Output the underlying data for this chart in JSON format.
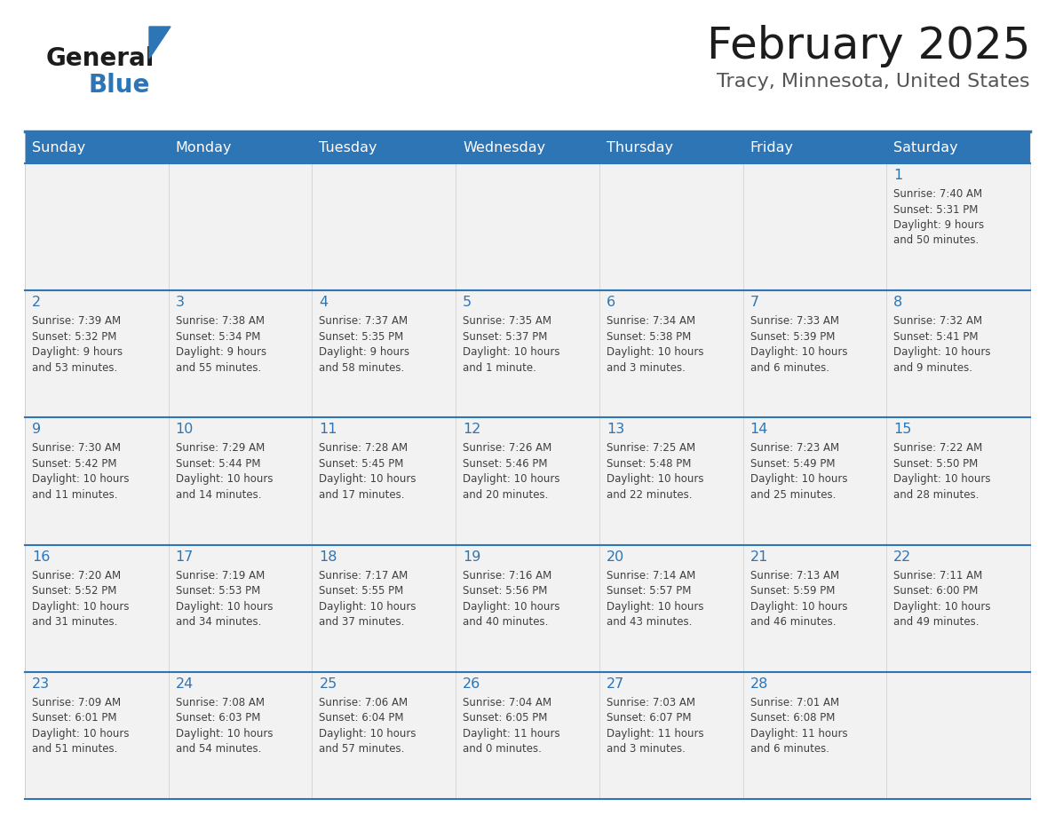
{
  "title": "February 2025",
  "subtitle": "Tracy, Minnesota, United States",
  "header_bg_color": "#2E75B6",
  "header_text_color": "#FFFFFF",
  "cell_bg_color": "#F2F2F2",
  "day_number_color": "#2E75B6",
  "text_color": "#404040",
  "border_color": "#2E75B6",
  "days_of_week": [
    "Sunday",
    "Monday",
    "Tuesday",
    "Wednesday",
    "Thursday",
    "Friday",
    "Saturday"
  ],
  "weeks": [
    [
      {
        "day": null,
        "sunrise": null,
        "sunset": null,
        "daylight": null
      },
      {
        "day": null,
        "sunrise": null,
        "sunset": null,
        "daylight": null
      },
      {
        "day": null,
        "sunrise": null,
        "sunset": null,
        "daylight": null
      },
      {
        "day": null,
        "sunrise": null,
        "sunset": null,
        "daylight": null
      },
      {
        "day": null,
        "sunrise": null,
        "sunset": null,
        "daylight": null
      },
      {
        "day": null,
        "sunrise": null,
        "sunset": null,
        "daylight": null
      },
      {
        "day": 1,
        "sunrise": "7:40 AM",
        "sunset": "5:31 PM",
        "daylight": "9 hours\nand 50 minutes."
      }
    ],
    [
      {
        "day": 2,
        "sunrise": "7:39 AM",
        "sunset": "5:32 PM",
        "daylight": "9 hours\nand 53 minutes."
      },
      {
        "day": 3,
        "sunrise": "7:38 AM",
        "sunset": "5:34 PM",
        "daylight": "9 hours\nand 55 minutes."
      },
      {
        "day": 4,
        "sunrise": "7:37 AM",
        "sunset": "5:35 PM",
        "daylight": "9 hours\nand 58 minutes."
      },
      {
        "day": 5,
        "sunrise": "7:35 AM",
        "sunset": "5:37 PM",
        "daylight": "10 hours\nand 1 minute."
      },
      {
        "day": 6,
        "sunrise": "7:34 AM",
        "sunset": "5:38 PM",
        "daylight": "10 hours\nand 3 minutes."
      },
      {
        "day": 7,
        "sunrise": "7:33 AM",
        "sunset": "5:39 PM",
        "daylight": "10 hours\nand 6 minutes."
      },
      {
        "day": 8,
        "sunrise": "7:32 AM",
        "sunset": "5:41 PM",
        "daylight": "10 hours\nand 9 minutes."
      }
    ],
    [
      {
        "day": 9,
        "sunrise": "7:30 AM",
        "sunset": "5:42 PM",
        "daylight": "10 hours\nand 11 minutes."
      },
      {
        "day": 10,
        "sunrise": "7:29 AM",
        "sunset": "5:44 PM",
        "daylight": "10 hours\nand 14 minutes."
      },
      {
        "day": 11,
        "sunrise": "7:28 AM",
        "sunset": "5:45 PM",
        "daylight": "10 hours\nand 17 minutes."
      },
      {
        "day": 12,
        "sunrise": "7:26 AM",
        "sunset": "5:46 PM",
        "daylight": "10 hours\nand 20 minutes."
      },
      {
        "day": 13,
        "sunrise": "7:25 AM",
        "sunset": "5:48 PM",
        "daylight": "10 hours\nand 22 minutes."
      },
      {
        "day": 14,
        "sunrise": "7:23 AM",
        "sunset": "5:49 PM",
        "daylight": "10 hours\nand 25 minutes."
      },
      {
        "day": 15,
        "sunrise": "7:22 AM",
        "sunset": "5:50 PM",
        "daylight": "10 hours\nand 28 minutes."
      }
    ],
    [
      {
        "day": 16,
        "sunrise": "7:20 AM",
        "sunset": "5:52 PM",
        "daylight": "10 hours\nand 31 minutes."
      },
      {
        "day": 17,
        "sunrise": "7:19 AM",
        "sunset": "5:53 PM",
        "daylight": "10 hours\nand 34 minutes."
      },
      {
        "day": 18,
        "sunrise": "7:17 AM",
        "sunset": "5:55 PM",
        "daylight": "10 hours\nand 37 minutes."
      },
      {
        "day": 19,
        "sunrise": "7:16 AM",
        "sunset": "5:56 PM",
        "daylight": "10 hours\nand 40 minutes."
      },
      {
        "day": 20,
        "sunrise": "7:14 AM",
        "sunset": "5:57 PM",
        "daylight": "10 hours\nand 43 minutes."
      },
      {
        "day": 21,
        "sunrise": "7:13 AM",
        "sunset": "5:59 PM",
        "daylight": "10 hours\nand 46 minutes."
      },
      {
        "day": 22,
        "sunrise": "7:11 AM",
        "sunset": "6:00 PM",
        "daylight": "10 hours\nand 49 minutes."
      }
    ],
    [
      {
        "day": 23,
        "sunrise": "7:09 AM",
        "sunset": "6:01 PM",
        "daylight": "10 hours\nand 51 minutes."
      },
      {
        "day": 24,
        "sunrise": "7:08 AM",
        "sunset": "6:03 PM",
        "daylight": "10 hours\nand 54 minutes."
      },
      {
        "day": 25,
        "sunrise": "7:06 AM",
        "sunset": "6:04 PM",
        "daylight": "10 hours\nand 57 minutes."
      },
      {
        "day": 26,
        "sunrise": "7:04 AM",
        "sunset": "6:05 PM",
        "daylight": "11 hours\nand 0 minutes."
      },
      {
        "day": 27,
        "sunrise": "7:03 AM",
        "sunset": "6:07 PM",
        "daylight": "11 hours\nand 3 minutes."
      },
      {
        "day": 28,
        "sunrise": "7:01 AM",
        "sunset": "6:08 PM",
        "daylight": "11 hours\nand 6 minutes."
      },
      {
        "day": null,
        "sunrise": null,
        "sunset": null,
        "daylight": null
      }
    ]
  ],
  "fig_width": 11.88,
  "fig_height": 9.18,
  "dpi": 100
}
